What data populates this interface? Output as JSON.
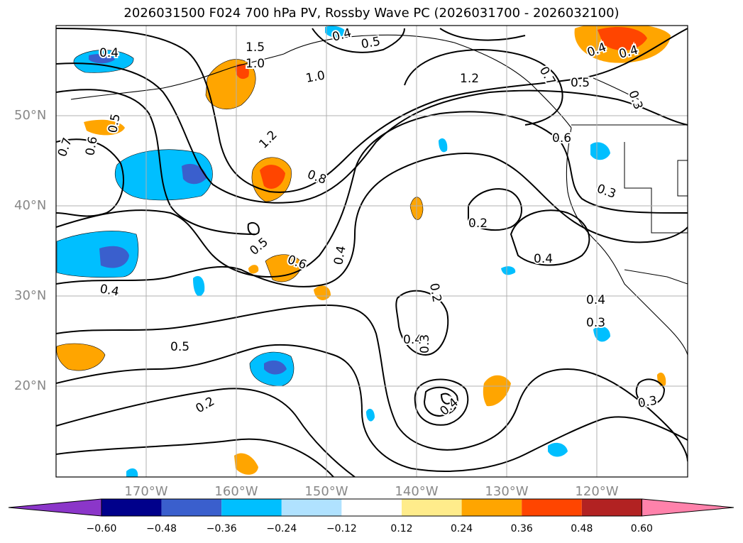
{
  "title": "2026031500 F024 700 hPa PV, Rossby Wave PC (2026031700 - 2026032100)",
  "axes": {
    "lat_labels": [
      "50°N",
      "40°N",
      "30°N",
      "20°N"
    ],
    "lon_labels": [
      "170°W",
      "160°W",
      "150°W",
      "140°W",
      "130°W",
      "120°W"
    ]
  },
  "contour_labels": [
    "0.4",
    "1.5",
    "1.0",
    "0.4",
    "0.5",
    "1.0",
    "1.2",
    "1.2",
    "0.7",
    "0.5",
    "0.4",
    "0.4",
    "0.3",
    "0.5",
    "0.7",
    "0.6",
    "0.8",
    "0.6",
    "0.3",
    "0.2",
    "0.5",
    "0.6",
    "0.4",
    "0.2",
    "0.4",
    "0.4",
    "0.4",
    "0.3",
    "0.4",
    "0.5",
    "0.3",
    "0.2",
    "0.4",
    "0.3"
  ],
  "colorbar": {
    "colors": [
      "#8b36c9",
      "#00008b",
      "#3a5fcd",
      "#00bfff",
      "#b0e2ff",
      "#ffffff",
      "#ffec8b",
      "#ffa500",
      "#ff4500",
      "#b22222",
      "#ff82ab"
    ],
    "ticks": [
      "−0.60",
      "−0.48",
      "−0.36",
      "−0.24",
      "−0.12",
      "0.12",
      "0.24",
      "0.36",
      "0.48",
      "0.60"
    ]
  }
}
